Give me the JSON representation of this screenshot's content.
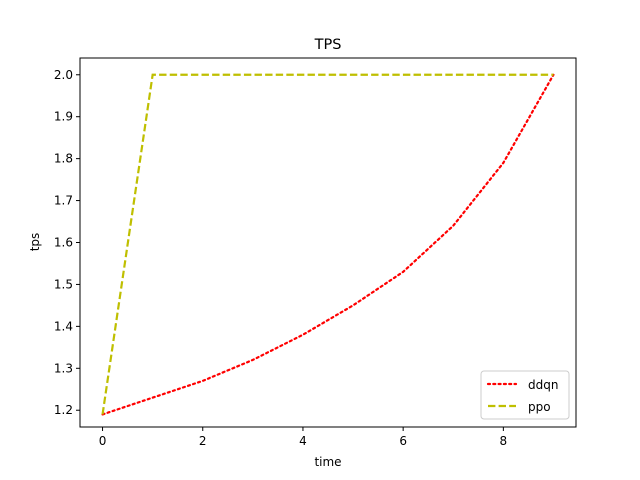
{
  "chart_data": {
    "type": "line",
    "title": "TPS",
    "xlabel": "time",
    "ylabel": "tps",
    "xlim": [
      -0.45,
      9.45
    ],
    "ylim": [
      1.16,
      2.04
    ],
    "xticks": [
      0,
      2,
      4,
      6,
      8
    ],
    "yticks": [
      1.2,
      1.3,
      1.4,
      1.5,
      1.6,
      1.7,
      1.8,
      1.9,
      2.0
    ],
    "xtick_labels": [
      "0",
      "2",
      "4",
      "6",
      "8"
    ],
    "ytick_labels": [
      "1.2",
      "1.3",
      "1.4",
      "1.5",
      "1.6",
      "1.7",
      "1.8",
      "1.9",
      "2.0"
    ],
    "grid": false,
    "legend_position": "lower-right",
    "series": [
      {
        "name": "ddqn",
        "color": "#ff0000",
        "style": "dotted",
        "x": [
          0,
          1,
          2,
          3,
          4,
          5,
          6,
          7,
          8,
          9
        ],
        "y": [
          1.19,
          1.23,
          1.27,
          1.32,
          1.38,
          1.45,
          1.53,
          1.64,
          1.79,
          2.0
        ]
      },
      {
        "name": "ppo",
        "color": "#bfbf00",
        "style": "dashed",
        "x": [
          0,
          1,
          2,
          3,
          4,
          5,
          6,
          7,
          8,
          9
        ],
        "y": [
          1.19,
          2.0,
          2.0,
          2.0,
          2.0,
          2.0,
          2.0,
          2.0,
          2.0,
          2.0
        ]
      }
    ]
  }
}
